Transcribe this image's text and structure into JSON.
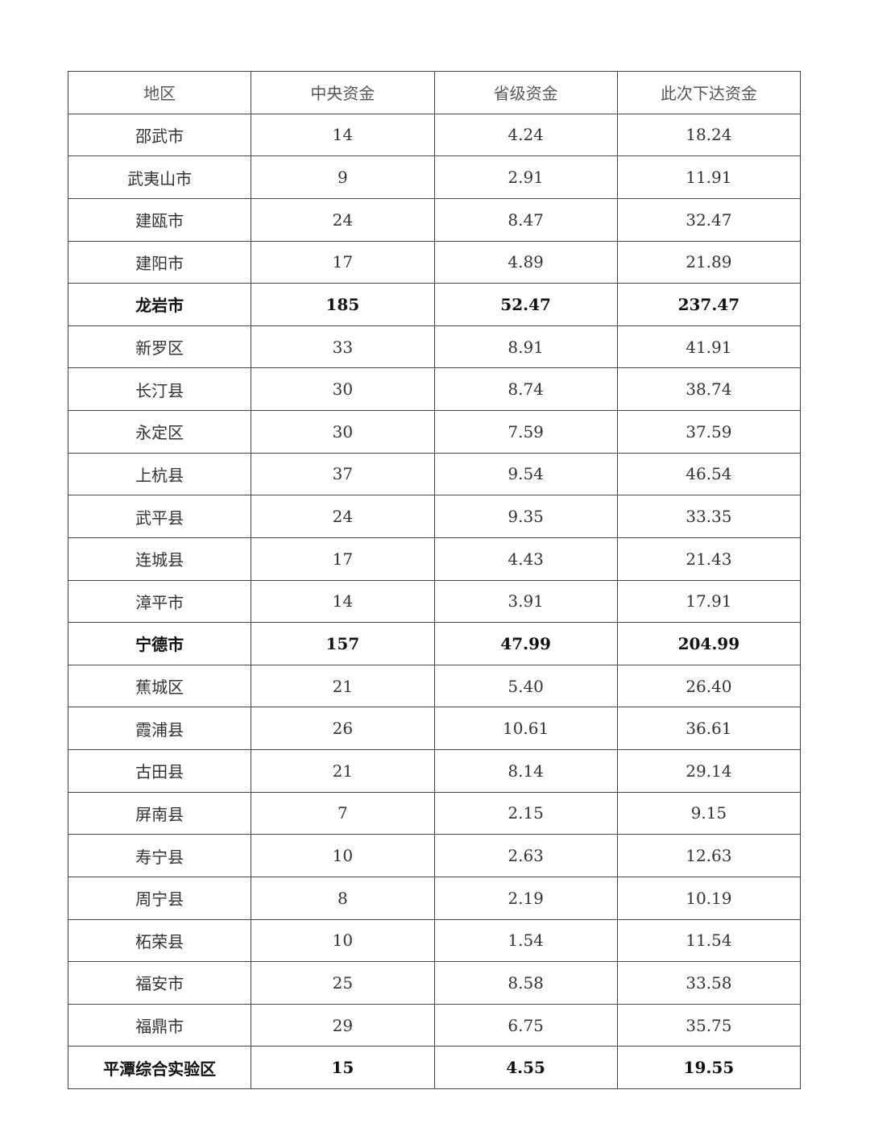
{
  "table": {
    "headers": [
      "地区",
      "中央资金",
      "省级资金",
      "此次下达资金"
    ],
    "rows": [
      {
        "cells": [
          "邵武市",
          "14",
          "4.24",
          "18.24"
        ],
        "bold": false
      },
      {
        "cells": [
          "武夷山市",
          "9",
          "2.91",
          "11.91"
        ],
        "bold": false
      },
      {
        "cells": [
          "建瓯市",
          "24",
          "8.47",
          "32.47"
        ],
        "bold": false
      },
      {
        "cells": [
          "建阳市",
          "17",
          "4.89",
          "21.89"
        ],
        "bold": false
      },
      {
        "cells": [
          "龙岩市",
          "185",
          "52.47",
          "237.47"
        ],
        "bold": true
      },
      {
        "cells": [
          "新罗区",
          "33",
          "8.91",
          "41.91"
        ],
        "bold": false
      },
      {
        "cells": [
          "长汀县",
          "30",
          "8.74",
          "38.74"
        ],
        "bold": false
      },
      {
        "cells": [
          "永定区",
          "30",
          "7.59",
          "37.59"
        ],
        "bold": false
      },
      {
        "cells": [
          "上杭县",
          "37",
          "9.54",
          "46.54"
        ],
        "bold": false
      },
      {
        "cells": [
          "武平县",
          "24",
          "9.35",
          "33.35"
        ],
        "bold": false
      },
      {
        "cells": [
          "连城县",
          "17",
          "4.43",
          "21.43"
        ],
        "bold": false
      },
      {
        "cells": [
          "漳平市",
          "14",
          "3.91",
          "17.91"
        ],
        "bold": false
      },
      {
        "cells": [
          "宁德市",
          "157",
          "47.99",
          "204.99"
        ],
        "bold": true
      },
      {
        "cells": [
          "蕉城区",
          "21",
          "5.40",
          "26.40"
        ],
        "bold": false
      },
      {
        "cells": [
          "霞浦县",
          "26",
          "10.61",
          "36.61"
        ],
        "bold": false
      },
      {
        "cells": [
          "古田县",
          "21",
          "8.14",
          "29.14"
        ],
        "bold": false
      },
      {
        "cells": [
          "屏南县",
          "7",
          "2.15",
          "9.15"
        ],
        "bold": false
      },
      {
        "cells": [
          "寿宁县",
          "10",
          "2.63",
          "12.63"
        ],
        "bold": false
      },
      {
        "cells": [
          "周宁县",
          "8",
          "2.19",
          "10.19"
        ],
        "bold": false
      },
      {
        "cells": [
          "柘荣县",
          "10",
          "1.54",
          "11.54"
        ],
        "bold": false
      },
      {
        "cells": [
          "福安市",
          "25",
          "8.58",
          "33.58"
        ],
        "bold": false
      },
      {
        "cells": [
          "福鼎市",
          "29",
          "6.75",
          "35.75"
        ],
        "bold": false
      },
      {
        "cells": [
          "平潭综合实验区",
          "15",
          "4.55",
          "19.55"
        ],
        "bold": true
      }
    ]
  }
}
